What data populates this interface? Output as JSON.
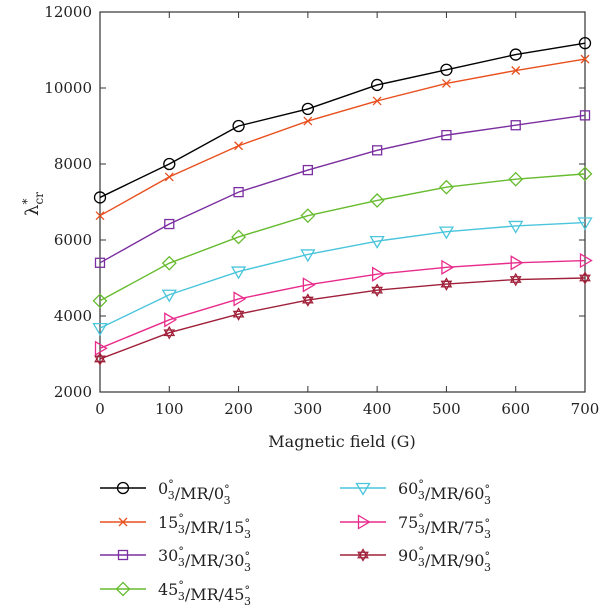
{
  "chart_data": {
    "type": "line",
    "xlabel": "Magnetic field (G)",
    "ylabel": "λ*cr",
    "ylabel_main": "λ",
    "ylabel_sup": "*",
    "ylabel_sub": "cr",
    "xlim": [
      0,
      700
    ],
    "ylim": [
      2000,
      12000
    ],
    "xticks": [
      0,
      100,
      200,
      300,
      400,
      500,
      600,
      700
    ],
    "yticks": [
      2000,
      4000,
      6000,
      8000,
      10000,
      12000
    ],
    "grid": false,
    "legend_position": "bottom",
    "x": [
      0,
      100,
      200,
      300,
      400,
      500,
      600,
      700
    ],
    "series": [
      {
        "name": "0°3/MR/0°3",
        "name_parts": [
          [
            "0",
            ""
          ],
          [
            "°",
            "3"
          ],
          [
            "/MR/0",
            ""
          ],
          [
            "°",
            "3"
          ]
        ],
        "color": "#000000",
        "marker": "circle",
        "values": [
          7120,
          8000,
          9000,
          9450,
          10080,
          10480,
          10880,
          11180
        ]
      },
      {
        "name": "15°3/MR/15°3",
        "name_parts": [
          [
            "15",
            ""
          ],
          [
            "°",
            "3"
          ],
          [
            "/MR/15",
            ""
          ],
          [
            "°",
            "3"
          ]
        ],
        "color": "#e8501e",
        "marker": "x",
        "values": [
          6640,
          7660,
          8480,
          9130,
          9660,
          10120,
          10460,
          10760
        ]
      },
      {
        "name": "30°3/MR/30°3",
        "name_parts": [
          [
            "30",
            ""
          ],
          [
            "°",
            "3"
          ],
          [
            "/MR/30",
            ""
          ],
          [
            "°",
            "3"
          ]
        ],
        "color": "#7b2fa0",
        "marker": "square",
        "values": [
          5400,
          6420,
          7260,
          7840,
          8360,
          8760,
          9020,
          9280
        ]
      },
      {
        "name": "45°3/MR/45°3",
        "name_parts": [
          [
            "45",
            ""
          ],
          [
            "°",
            "3"
          ],
          [
            "/MR/45",
            ""
          ],
          [
            "°",
            "3"
          ]
        ],
        "color": "#66bb2e",
        "marker": "diamond",
        "values": [
          4400,
          5390,
          6080,
          6640,
          7040,
          7390,
          7600,
          7740
        ]
      },
      {
        "name": "60°3/MR/60°3",
        "name_parts": [
          [
            "60",
            ""
          ],
          [
            "°",
            "3"
          ],
          [
            "/MR/60",
            ""
          ],
          [
            "°",
            "3"
          ]
        ],
        "color": "#4ac5dc",
        "marker": "triangle-down",
        "values": [
          3680,
          4560,
          5170,
          5620,
          5970,
          6220,
          6370,
          6460
        ]
      },
      {
        "name": "75°3/MR/75°3",
        "name_parts": [
          [
            "75",
            ""
          ],
          [
            "°",
            "3"
          ],
          [
            "/MR/75",
            ""
          ],
          [
            "°",
            "3"
          ]
        ],
        "color": "#e82c8c",
        "marker": "triangle-right",
        "values": [
          3150,
          3900,
          4450,
          4820,
          5100,
          5280,
          5400,
          5460
        ]
      },
      {
        "name": "90°3/MR/90°3",
        "name_parts": [
          [
            "90",
            ""
          ],
          [
            "°",
            "3"
          ],
          [
            "/MR/90",
            ""
          ],
          [
            "°",
            "3"
          ]
        ],
        "color": "#a0203a",
        "marker": "hexagram",
        "values": [
          2870,
          3560,
          4050,
          4420,
          4680,
          4840,
          4960,
          5000
        ]
      }
    ]
  }
}
